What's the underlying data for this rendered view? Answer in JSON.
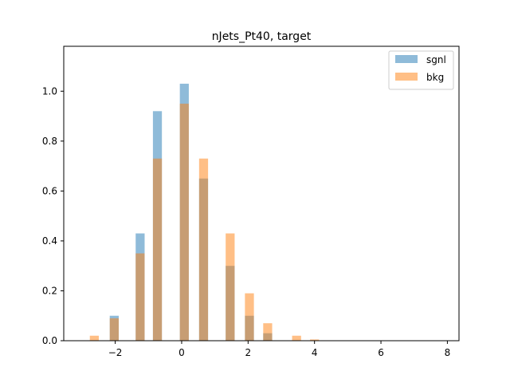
{
  "chart_data": {
    "type": "bar",
    "title": "nJets_Pt40, target",
    "xlabel": "",
    "ylabel": "",
    "xlim": [
      -3.55,
      8.35
    ],
    "ylim": [
      0,
      1.18
    ],
    "xticks": [
      -2,
      0,
      2,
      4,
      6,
      8
    ],
    "xtick_labels": [
      "−2",
      "0",
      "2",
      "4",
      "6",
      "8"
    ],
    "yticks": [
      0.0,
      0.2,
      0.4,
      0.6,
      0.8,
      1.0
    ],
    "ytick_labels": [
      "0.0",
      "0.2",
      "0.4",
      "0.6",
      "0.8",
      "1.0"
    ],
    "grid": false,
    "legend_position": "top-right",
    "bin_width": 0.27,
    "series": [
      {
        "name": "sgnl",
        "color": "#1f77b4",
        "alpha": 0.5,
        "bins": [
          {
            "x": -2.03,
            "value": 0.1
          },
          {
            "x": -1.25,
            "value": 0.43
          },
          {
            "x": -0.73,
            "value": 0.92
          },
          {
            "x": 0.08,
            "value": 1.03
          },
          {
            "x": 0.66,
            "value": 0.65
          },
          {
            "x": 1.46,
            "value": 0.3
          },
          {
            "x": 2.04,
            "value": 0.1
          },
          {
            "x": 2.59,
            "value": 0.03
          }
        ]
      },
      {
        "name": "bkg",
        "color": "#ff7f0e",
        "alpha": 0.5,
        "bins": [
          {
            "x": -2.63,
            "value": 0.02
          },
          {
            "x": -2.03,
            "value": 0.09
          },
          {
            "x": -1.25,
            "value": 0.35
          },
          {
            "x": -0.73,
            "value": 0.73
          },
          {
            "x": 0.08,
            "value": 0.95
          },
          {
            "x": 0.66,
            "value": 0.73
          },
          {
            "x": 1.46,
            "value": 0.43
          },
          {
            "x": 2.04,
            "value": 0.19
          },
          {
            "x": 2.59,
            "value": 0.07
          },
          {
            "x": 3.46,
            "value": 0.02
          },
          {
            "x": 4.0,
            "value": 0.005
          }
        ]
      }
    ]
  }
}
